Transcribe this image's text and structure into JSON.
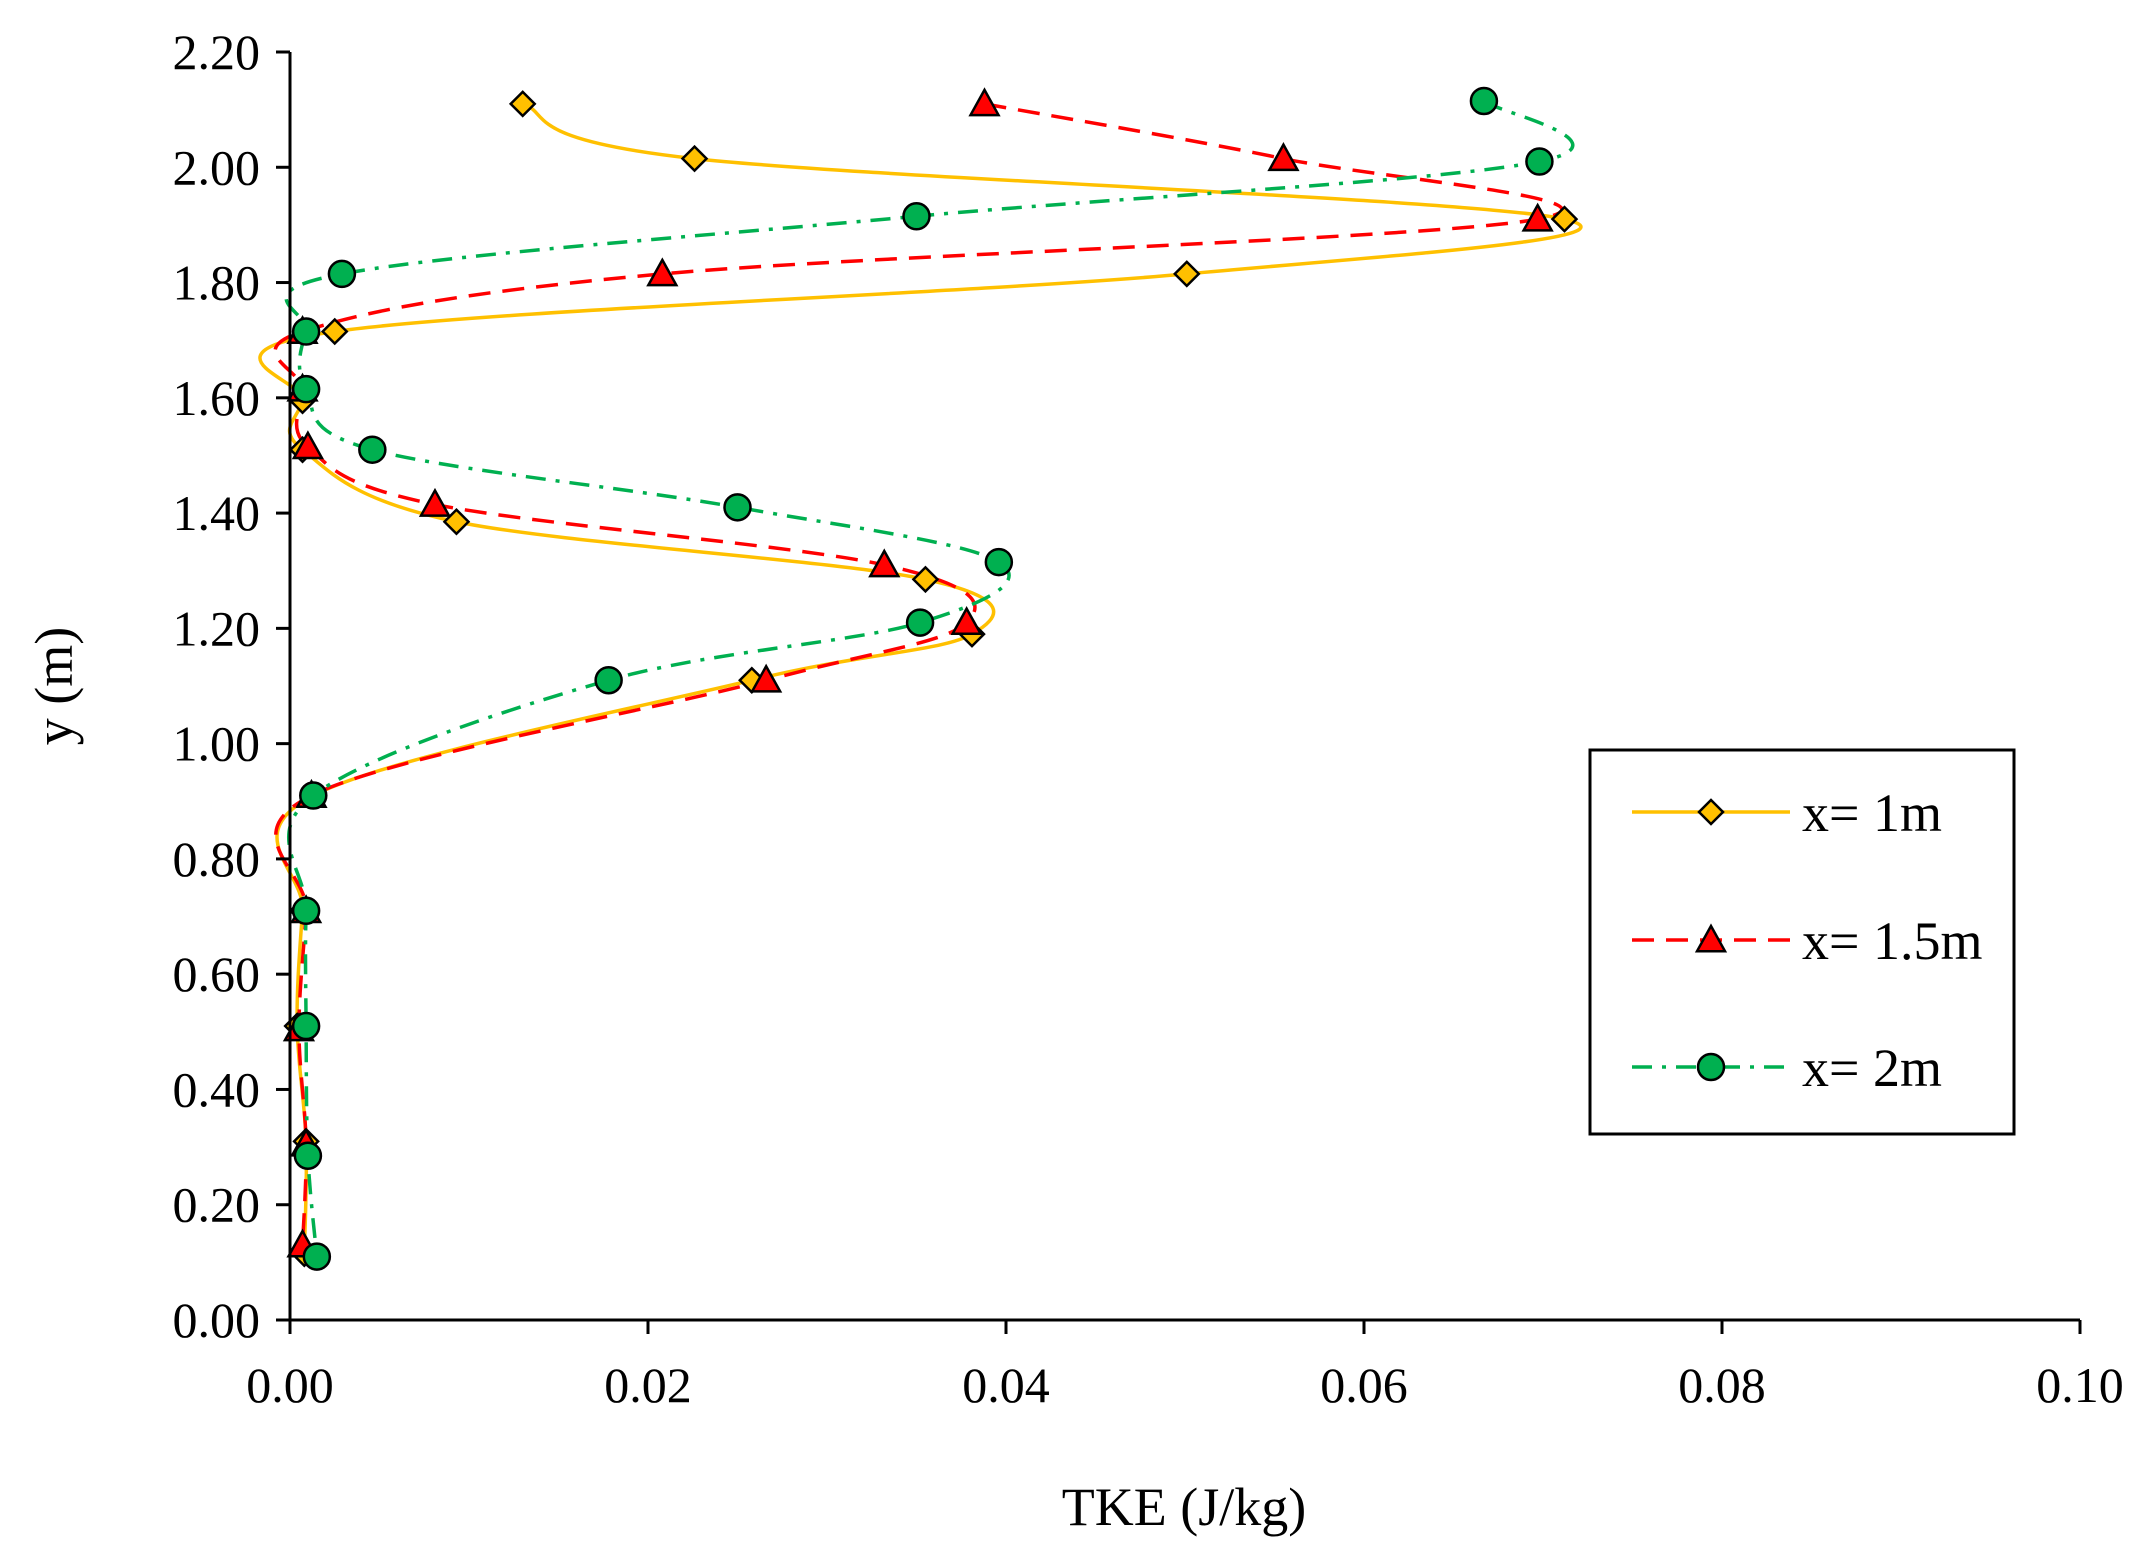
{
  "chart_data": {
    "type": "line",
    "title": "",
    "xlabel": "TKE (J/kg)",
    "ylabel": "y (m)",
    "xlim": [
      0,
      0.1
    ],
    "ylim": [
      0,
      2.2
    ],
    "xticks": [
      "0.00",
      "0.02",
      "0.04",
      "0.06",
      "0.08",
      "0.10"
    ],
    "yticks": [
      "0.00",
      "0.20",
      "0.40",
      "0.60",
      "0.80",
      "1.00",
      "1.20",
      "1.40",
      "1.60",
      "1.80",
      "2.00",
      "2.20"
    ],
    "grid": false,
    "legend_position": "right",
    "series": [
      {
        "name": "x= 1m",
        "color": "#FFC000",
        "line_style": "solid",
        "marker": "diamond",
        "marker_fill": "#FFC000",
        "points": [
          [
            0.013,
            2.11
          ],
          [
            0.0226,
            2.015
          ],
          [
            0.0712,
            1.91
          ],
          [
            0.0501,
            1.815
          ],
          [
            0.0025,
            1.715
          ],
          [
            0.0007,
            1.595
          ],
          [
            0.0007,
            1.51
          ],
          [
            0.0093,
            1.385
          ],
          [
            0.0355,
            1.285
          ],
          [
            0.0381,
            1.19
          ],
          [
            0.0258,
            1.11
          ],
          [
            0.0013,
            0.91
          ],
          [
            0.0007,
            0.71
          ],
          [
            0.0004,
            0.51
          ],
          [
            0.0009,
            0.31
          ],
          [
            0.0008,
            0.115
          ]
        ]
      },
      {
        "name": "x= 1.5m",
        "color": "#FF0000",
        "line_style": "dashed",
        "marker": "triangle",
        "marker_fill": "#FF0000",
        "points": [
          [
            0.0388,
            2.11
          ],
          [
            0.0555,
            2.015
          ],
          [
            0.0697,
            1.91
          ],
          [
            0.0208,
            1.815
          ],
          [
            0.0007,
            1.715
          ],
          [
            0.0007,
            1.615
          ],
          [
            0.001,
            1.515
          ],
          [
            0.0081,
            1.415
          ],
          [
            0.0332,
            1.31
          ],
          [
            0.0378,
            1.21
          ],
          [
            0.0266,
            1.11
          ],
          [
            0.0012,
            0.91
          ],
          [
            0.0009,
            0.71
          ],
          [
            0.0005,
            0.505
          ],
          [
            0.0009,
            0.305
          ],
          [
            0.0007,
            0.13
          ]
        ]
      },
      {
        "name": "x= 2m",
        "color": "#00B050",
        "line_style": "dash-dot",
        "marker": "circle",
        "marker_fill": "#00B050",
        "points": [
          [
            0.0667,
            2.115
          ],
          [
            0.0698,
            2.01
          ],
          [
            0.035,
            1.915
          ],
          [
            0.0029,
            1.815
          ],
          [
            0.0009,
            1.715
          ],
          [
            0.0009,
            1.615
          ],
          [
            0.0046,
            1.51
          ],
          [
            0.025,
            1.41
          ],
          [
            0.0396,
            1.315
          ],
          [
            0.0352,
            1.21
          ],
          [
            0.0178,
            1.11
          ],
          [
            0.0013,
            0.91
          ],
          [
            0.0009,
            0.71
          ],
          [
            0.0009,
            0.51
          ],
          [
            0.001,
            0.285
          ],
          [
            0.0015,
            0.11
          ]
        ]
      }
    ]
  }
}
